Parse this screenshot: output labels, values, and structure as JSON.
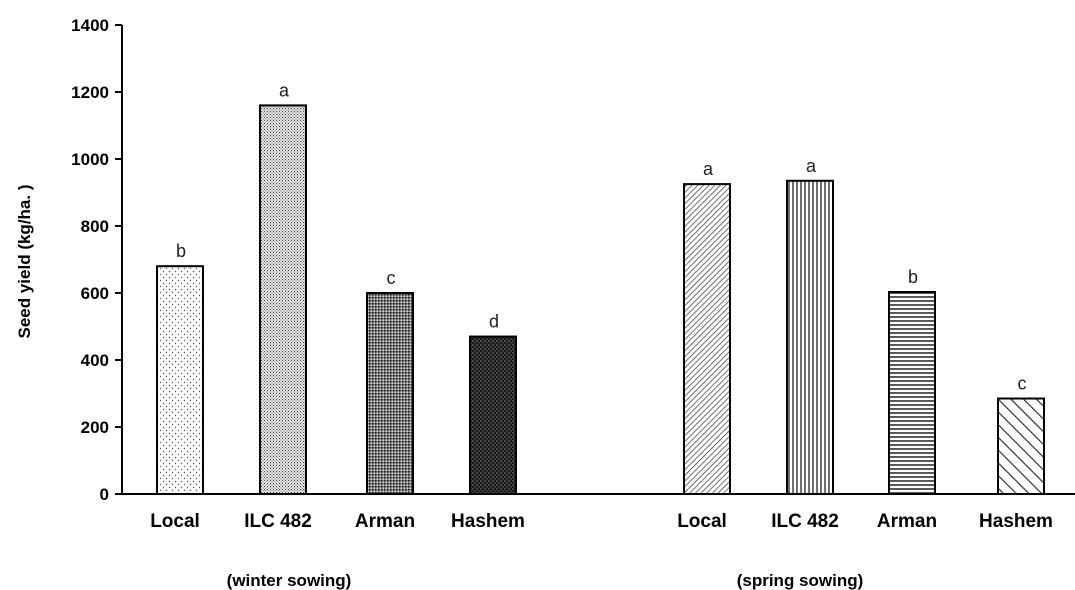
{
  "chart_data": {
    "type": "bar",
    "ylabel": "Seed yield (kg/ha. )",
    "ylim": [
      0,
      1400
    ],
    "yticks": [
      0,
      200,
      400,
      600,
      800,
      1000,
      1200,
      1400
    ],
    "grid": false,
    "groups": [
      {
        "label": "(winter sowing)",
        "bars": [
          {
            "category": "Local",
            "value": 680,
            "letter": "b",
            "pattern": "dots-sparse"
          },
          {
            "category": "ILC 482",
            "value": 1160,
            "letter": "a",
            "pattern": "dots-fine"
          },
          {
            "category": "Arman",
            "value": 600,
            "letter": "c",
            "pattern": "crosshatch-dense"
          },
          {
            "category": "Hashem",
            "value": 470,
            "letter": "d",
            "pattern": "dots-dark"
          }
        ]
      },
      {
        "label": "(spring sowing)",
        "bars": [
          {
            "category": "Local",
            "value": 925,
            "letter": "a",
            "pattern": "diagonal-fine"
          },
          {
            "category": "ILC 482",
            "value": 935,
            "letter": "a",
            "pattern": "vertical-lines"
          },
          {
            "category": "Arman",
            "value": 603,
            "letter": "b",
            "pattern": "horizontal-lines"
          },
          {
            "category": "Hashem",
            "value": 285,
            "letter": "c",
            "pattern": "diagonal-wide"
          }
        ]
      }
    ]
  }
}
